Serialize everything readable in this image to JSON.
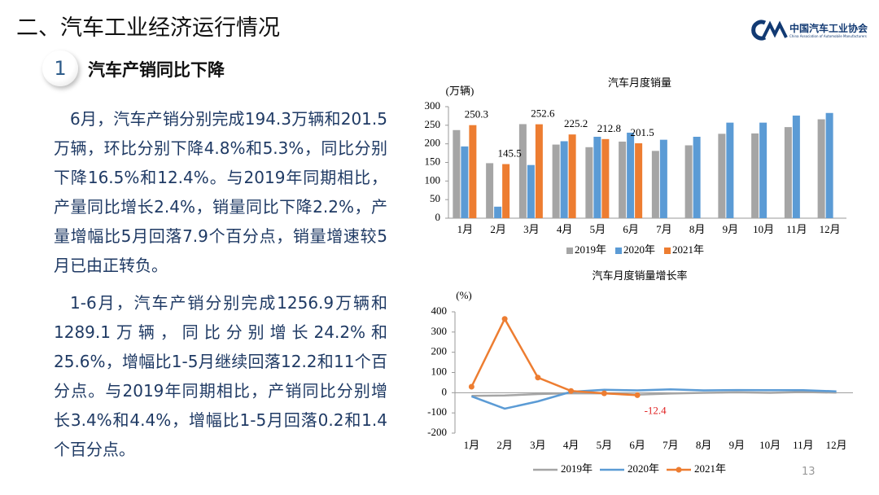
{
  "header": {
    "title": "二、汽车工业经济运行情况",
    "logo_name": "中国汽车工业协会",
    "logo_en": "China Association of Automobile Manufacturers"
  },
  "section": {
    "number": "1",
    "title": "汽车产销同比下降"
  },
  "paragraphs": [
    "6月，汽车产销分别完成194.3万辆和201.5万辆，环比分别下降4.8%和5.3%，同比分别下降16.5%和12.4%。与2019年同期相比，产量同比增长2.4%，销量同比下降2.2%，产量增幅比5月回落7.9个百分点，销量增速较5月已由正转负。",
    "1-6月，汽车产销分别完成1256.9万辆和1289.1万辆，同比分别增长24.2%和25.6%，增幅比1-5月继续回落12.2和11个百分点。与2019年同期相比，产销同比分别增长3.4%和4.4%，增幅比1-5月回落0.2和1.4个百分点。"
  ],
  "page_number": "13",
  "chart_data": [
    {
      "type": "bar",
      "title": "汽车月度销量",
      "y_label": "(万辆)",
      "categories": [
        "1月",
        "2月",
        "3月",
        "4月",
        "5月",
        "6月",
        "7月",
        "8月",
        "9月",
        "10月",
        "11月",
        "12月"
      ],
      "series": [
        {
          "name": "2019年",
          "color": "#a5a5a5",
          "values": [
            237,
            148,
            253,
            198,
            191,
            206,
            181,
            196,
            227,
            228,
            245,
            266
          ]
        },
        {
          "name": "2020年",
          "color": "#5b9bd5",
          "values": [
            193,
            31,
            143,
            207,
            219,
            230,
            211,
            219,
            257,
            257,
            276,
            283
          ]
        },
        {
          "name": "2021年",
          "color": "#ed7d31",
          "values": [
            250.3,
            145.5,
            252.6,
            225.2,
            212.8,
            201.5,
            null,
            null,
            null,
            null,
            null,
            null
          ],
          "show_labels": true
        }
      ],
      "ylim": [
        0,
        300
      ],
      "yticks": [
        0,
        50,
        100,
        150,
        200,
        250,
        300
      ],
      "grid": false,
      "legend": "bottom"
    },
    {
      "type": "line",
      "title": "汽车月度销量增长率",
      "y_label": "(%)",
      "categories": [
        "1月",
        "2月",
        "3月",
        "4月",
        "5月",
        "6月",
        "7月",
        "8月",
        "9月",
        "10月",
        "11月",
        "12月"
      ],
      "series": [
        {
          "name": "2019年",
          "color": "#a5a5a5",
          "values": [
            -15.8,
            -13.8,
            -6.9,
            -2.6,
            -3.2,
            -9.6,
            -4.3,
            -0.9,
            1.8,
            -0.8,
            3.6,
            0.1
          ]
        },
        {
          "name": "2020年",
          "color": "#5b9bd5",
          "values": [
            -18,
            -79,
            -43,
            4.4,
            14.5,
            11.6,
            16.4,
            11.6,
            12.8,
            12.5,
            12.6,
            6.4
          ]
        },
        {
          "name": "2021年",
          "color": "#ed7d31",
          "markers": true,
          "values": [
            29.5,
            364.8,
            74.9,
            8.6,
            -3.1,
            -12.4,
            null,
            null,
            null,
            null,
            null,
            null
          ],
          "value_labels": [
            null,
            null,
            null,
            null,
            null,
            "-12.4",
            null,
            null,
            null,
            null,
            null,
            null
          ],
          "label_color": "#e02020"
        }
      ],
      "ylim": [
        -200,
        400
      ],
      "yticks": [
        -200,
        -100,
        0,
        100,
        200,
        300,
        400
      ],
      "grid": false,
      "legend": "bottom"
    }
  ]
}
